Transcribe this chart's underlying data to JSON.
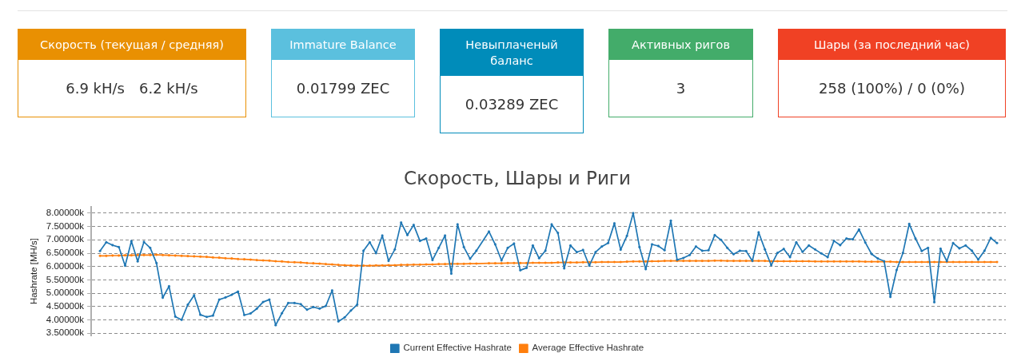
{
  "chart_data": [
    {
      "type": "other",
      "title": "Скорость (текущая / средняя)",
      "annotations": [
        "6.9 kH/s",
        "6.2 kH/s"
      ],
      "color": "#e99002"
    },
    {
      "type": "other",
      "title": "Immature Balance",
      "annotations": [
        "0.01799 ZEC"
      ],
      "color": "#5bc0de"
    },
    {
      "type": "other",
      "title": "Невыплаченый баланс",
      "annotations": [
        "0.03289 ZEC"
      ],
      "color": "#008cba"
    },
    {
      "type": "other",
      "title": "Активных ригов",
      "annotations": [
        "3"
      ],
      "color": "#43ac6a"
    },
    {
      "type": "other",
      "title": "Шары (за последний час)",
      "annotations": [
        "258 (100%) / 0 (0%)"
      ],
      "color": "#f04124"
    },
    {
      "type": "line",
      "title": "Скорость, Шары и Риги",
      "ylabel": "Hashrate [MH/s]",
      "categories": [
        null,
        null,
        null,
        null,
        null,
        null,
        null,
        null,
        null,
        null,
        null,
        null,
        null,
        null,
        null,
        null,
        null,
        null,
        null,
        null,
        null,
        null,
        null,
        null,
        null,
        null,
        null,
        null,
        null,
        null,
        null,
        null,
        null,
        null,
        null,
        null,
        null,
        null,
        null,
        null,
        null,
        null,
        null,
        null,
        null,
        null,
        null,
        null,
        null,
        null,
        null,
        null,
        null,
        null,
        null,
        null,
        null,
        null,
        null,
        null,
        null,
        null,
        null,
        null,
        null,
        null,
        null,
        null,
        null,
        null,
        null,
        null,
        null,
        null,
        null,
        null,
        null,
        null,
        null,
        null,
        null,
        null,
        null,
        null,
        null,
        null,
        null,
        null,
        null,
        null,
        null,
        null,
        null,
        null,
        null,
        null,
        null,
        null,
        null,
        null,
        null,
        null,
        null,
        null,
        null,
        null,
        null,
        null,
        null,
        null,
        null,
        null,
        null,
        null,
        null,
        null,
        null,
        null,
        null,
        null,
        null,
        null,
        null,
        null,
        null,
        null,
        null,
        null,
        null,
        null,
        null,
        null,
        null,
        null,
        null,
        null,
        null,
        null,
        null,
        null,
        null,
        null,
        null,
        null
      ],
      "series": [
        {
          "name": "Current Effective Hashrate",
          "color": "#1f77b4",
          "values": [
            6580,
            6910,
            6800,
            6730,
            6030,
            6950,
            6190,
            6920,
            6700,
            6130,
            4830,
            5260,
            4120,
            4000,
            4570,
            4920,
            4190,
            4110,
            4160,
            4760,
            4840,
            4940,
            5060,
            4180,
            4240,
            4420,
            4670,
            4760,
            3800,
            4250,
            4630,
            4630,
            4590,
            4380,
            4480,
            4420,
            4520,
            5100,
            3940,
            4090,
            4350,
            4570,
            6590,
            6910,
            6500,
            7160,
            6210,
            6640,
            7650,
            7180,
            7560,
            6960,
            7050,
            6240,
            6700,
            7160,
            5730,
            7580,
            6730,
            6290,
            6590,
            null,
            7310,
            6830,
            6230,
            6700,
            6860,
            5860,
            5950,
            6790,
            6310,
            6590,
            7580,
            7260,
            5930,
            6790,
            6540,
            6620,
            6030,
            6540,
            6750,
            6880,
            7620,
            6630,
            7150,
            8000,
            6730,
            5900,
            6830,
            6770,
            6610,
            7720,
            6250,
            6320,
            6430,
            6750,
            6590,
            6610,
            7180,
            7000,
            6700,
            6460,
            6590,
            6580,
            6210,
            7280,
            6640,
            6050,
            6510,
            6660,
            6350,
            6910,
            6550,
            6790,
            6640,
            6490,
            6350,
            6960,
            6800,
            7050,
            7020,
            7390,
            6900,
            6470,
            6300,
            6200,
            4860,
            5870,
            6510,
            7600,
            7050,
            6580,
            6700,
            4660,
            6670,
            6200,
            6880,
            6680,
            6790,
            6590,
            6260,
            6590,
            7070,
            6880
          ]
        },
        {
          "name": "Average Effective Hashrate",
          "color": "#ff7f0e",
          "values": [
            6400,
            6400,
            6410,
            6410,
            6420,
            6420,
            6430,
            6430,
            6430,
            6440,
            6430,
            6420,
            6410,
            6400,
            6390,
            6380,
            6370,
            6360,
            6340,
            6330,
            6310,
            6300,
            6280,
            6270,
            6260,
            6240,
            6230,
            6220,
            6200,
            6190,
            6170,
            6160,
            6150,
            6130,
            6120,
            6110,
            6090,
            6080,
            6060,
            6050,
            6040,
            6030,
            6030,
            6030,
            6040,
            6040,
            6050,
            6050,
            6060,
            6060,
            6070,
            6070,
            6080,
            6080,
            6090,
            6090,
            6100,
            6100,
            6100,
            6110,
            6110,
            null,
            6120,
            6120,
            6120,
            6130,
            6130,
            6130,
            6130,
            6140,
            6140,
            6140,
            6140,
            6150,
            6150,
            6150,
            6150,
            6160,
            6160,
            6160,
            6170,
            6170,
            6170,
            6170,
            6180,
            6190,
            6190,
            6190,
            6200,
            6200,
            6210,
            6210,
            6210,
            6210,
            6210,
            6210,
            6210,
            6210,
            6220,
            6220,
            6210,
            6210,
            6210,
            6210,
            6210,
            6210,
            6210,
            6200,
            6200,
            6200,
            6200,
            6200,
            6200,
            6200,
            6190,
            6190,
            6190,
            6190,
            6190,
            6190,
            6190,
            6190,
            6180,
            6180,
            6180,
            6180,
            6180,
            6170,
            6170,
            6170,
            6170,
            6170,
            6170,
            6170,
            6170,
            6170,
            6170,
            6170,
            6170,
            6170,
            6170,
            6170,
            6170,
            6170
          ]
        }
      ],
      "ylim": [
        3400,
        8250
      ],
      "yticks": [
        {
          "value": 3500,
          "label": "3.50000k"
        },
        {
          "value": 4000,
          "label": "4.00000k"
        },
        {
          "value": 4500,
          "label": "4.50000k"
        },
        {
          "value": 5000,
          "label": "5.00000k"
        },
        {
          "value": 5500,
          "label": "5.50000k"
        },
        {
          "value": 6000,
          "label": "6.00000k"
        },
        {
          "value": 6500,
          "label": "6.50000k"
        },
        {
          "value": 7000,
          "label": "7.00000k"
        },
        {
          "value": 7500,
          "label": "7.50000k"
        },
        {
          "value": 8000,
          "label": "8.00000k"
        }
      ],
      "grid": "y",
      "legend": "bottom",
      "marker": "circle"
    }
  ]
}
